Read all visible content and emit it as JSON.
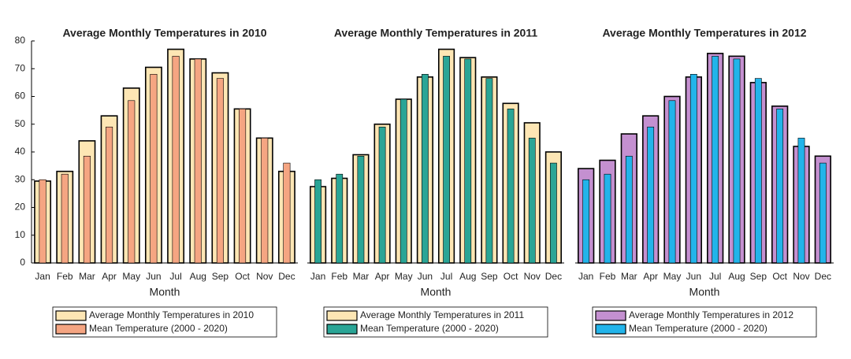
{
  "chart_data": [
    {
      "type": "bar",
      "title": "Average Monthly Temperatures in 2010",
      "x_label": "Month",
      "categories": [
        "Jan",
        "Feb",
        "Mar",
        "Apr",
        "May",
        "Jun",
        "Jul",
        "Aug",
        "Sep",
        "Oct",
        "Nov",
        "Dec"
      ],
      "series": [
        {
          "name": "Average Monthly Temperatures in 2010",
          "color": "#fde6b4",
          "values": [
            29.5,
            33,
            44,
            53,
            63,
            70.5,
            77,
            73.5,
            68.5,
            55.5,
            45,
            33
          ]
        },
        {
          "name": "Mean Temperature (2000 - 2020)",
          "color": "#f5a582",
          "values": [
            30,
            32,
            38.5,
            49,
            58.5,
            68,
            74.5,
            73.5,
            66.5,
            55.5,
            45,
            36
          ]
        }
      ],
      "ylim": [
        0,
        80
      ],
      "yticks": [
        0,
        10,
        20,
        30,
        40,
        50,
        60,
        70,
        80
      ]
    },
    {
      "type": "bar",
      "title": "Average Monthly Temperatures in 2011",
      "x_label": "Month",
      "categories": [
        "Jan",
        "Feb",
        "Mar",
        "Apr",
        "May",
        "Jun",
        "Jul",
        "Aug",
        "Sep",
        "Oct",
        "Nov",
        "Dec"
      ],
      "series": [
        {
          "name": "Average Monthly Temperatures in 2011",
          "color": "#fde6b4",
          "values": [
            27.5,
            30.5,
            39,
            50,
            59,
            67,
            77,
            74,
            67,
            57.5,
            50.5,
            40
          ]
        },
        {
          "name": "Mean Temperature (2000 - 2020)",
          "color": "#2aa596",
          "values": [
            30,
            32,
            38.5,
            49,
            59,
            68,
            74.5,
            73.5,
            66.5,
            55.5,
            45,
            36
          ]
        }
      ],
      "ylim": [
        0,
        80
      ]
    },
    {
      "type": "bar",
      "title": "Average Monthly Temperatures in 2012",
      "x_label": "Month",
      "categories": [
        "Jan",
        "Feb",
        "Mar",
        "Apr",
        "May",
        "Jun",
        "Jul",
        "Aug",
        "Sep",
        "Oct",
        "Nov",
        "Dec"
      ],
      "series": [
        {
          "name": "Average Monthly Temperatures in 2012",
          "color": "#c490d0",
          "values": [
            34,
            37,
            46.5,
            53,
            60,
            67,
            75.5,
            74.5,
            65,
            56.5,
            42,
            38.5
          ]
        },
        {
          "name": "Mean Temperature (2000 - 2020)",
          "color": "#22b4ea",
          "values": [
            30,
            32,
            38.5,
            49,
            58.5,
            68,
            74.5,
            73.5,
            66.5,
            55.5,
            45,
            36
          ]
        }
      ],
      "ylim": [
        0,
        80
      ]
    }
  ]
}
